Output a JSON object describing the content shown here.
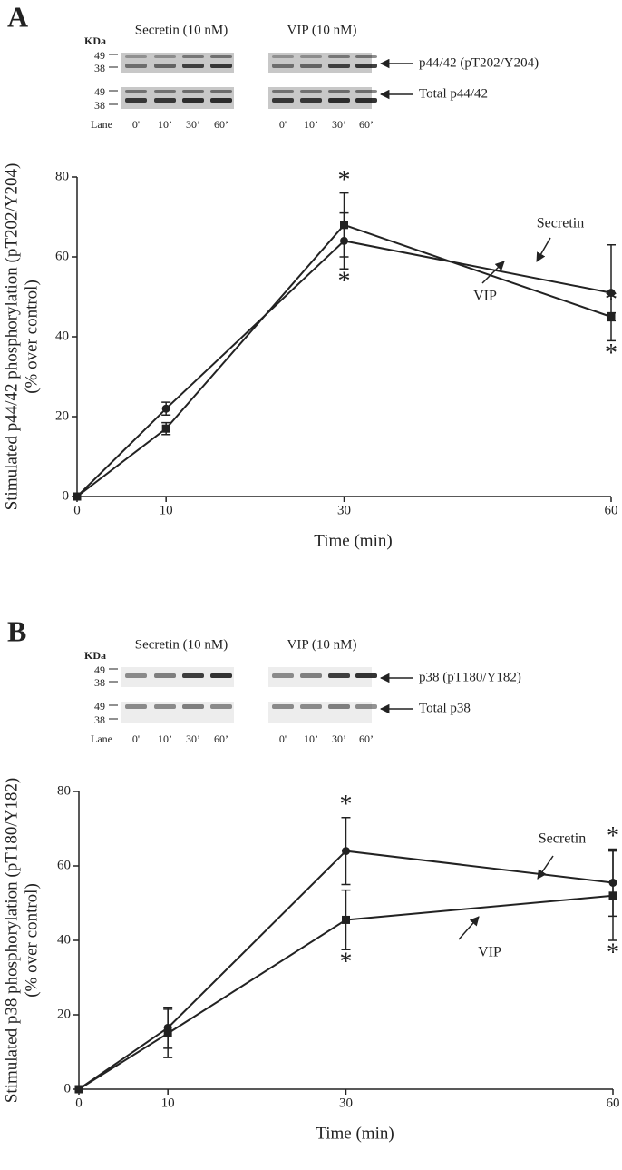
{
  "chart_data": [
    {
      "type": "line",
      "panel_label": "A",
      "blot": {
        "groups": [
          "Secretin (10 nM)",
          "VIP (10 nM)"
        ],
        "unit": "KDa",
        "markers": [
          "49",
          "38",
          "49",
          "38"
        ],
        "lane_title": "Lane",
        "lanes": [
          "0'",
          "10’",
          "30’",
          "60’",
          "0'",
          "10’",
          "30’",
          "60’"
        ],
        "rows": [
          "p44/42 (pT202/Y204)",
          "Total p44/42"
        ]
      },
      "xlabel": "Time (min)",
      "ylabel": [
        "Stimulated p44/42 phosphorylation (pT202/Y204)",
        "(% over control)"
      ],
      "x": [
        0,
        10,
        30,
        60
      ],
      "xlim": [
        0,
        60
      ],
      "xticks": [
        0,
        10,
        30,
        60
      ],
      "ylim": [
        0,
        80
      ],
      "yticks": [
        0,
        20,
        40,
        60,
        80
      ],
      "significance_symbol": "*",
      "series": [
        {
          "name": "Secretin",
          "color": "#222222",
          "marker": "circle",
          "values": [
            0,
            22,
            64,
            51
          ],
          "errors": [
            null,
            1.6,
            7,
            12
          ],
          "significant": [
            false,
            false,
            true,
            true
          ],
          "significance_side": "below"
        },
        {
          "name": "VIP",
          "color": "#222222",
          "marker": "square",
          "values": [
            0,
            17,
            68,
            45
          ],
          "errors": [
            null,
            1.5,
            8,
            1
          ],
          "significant": [
            false,
            false,
            true,
            true
          ],
          "significance_side": "above"
        }
      ]
    },
    {
      "type": "line",
      "panel_label": "B",
      "blot": {
        "groups": [
          "Secretin (10 nM)",
          "VIP (10 nM)"
        ],
        "unit": "KDa",
        "markers": [
          "49",
          "38",
          "49",
          "38"
        ],
        "lane_title": "Lane",
        "lanes": [
          "0'",
          "10’",
          "30’",
          "60’",
          "0'",
          "10’",
          "30’",
          "60’"
        ],
        "rows": [
          "p38 (pT180/Y182)",
          "Total p38"
        ]
      },
      "xlabel": "Time (min)",
      "ylabel": [
        "Stimulated p38 phosphorylation (pT180/Y182)",
        "(% over control)"
      ],
      "x": [
        0,
        10,
        30,
        60
      ],
      "xlim": [
        0,
        60
      ],
      "xticks": [
        0,
        10,
        30,
        60
      ],
      "ylim": [
        0,
        80
      ],
      "yticks": [
        0,
        20,
        40,
        60,
        80
      ],
      "significance_symbol": "*",
      "series": [
        {
          "name": "Secretin",
          "color": "#222222",
          "marker": "circle",
          "values": [
            0,
            16.5,
            64,
            55.5
          ],
          "errors": [
            null,
            5.5,
            9,
            9
          ],
          "significant": [
            false,
            false,
            true,
            true
          ],
          "significance_side": "above"
        },
        {
          "name": "VIP",
          "color": "#222222",
          "marker": "square",
          "values": [
            0,
            15,
            45.5,
            52
          ],
          "errors": [
            null,
            6.5,
            8,
            12
          ],
          "significant": [
            false,
            false,
            true,
            true
          ],
          "significance_side": "below"
        }
      ]
    }
  ]
}
